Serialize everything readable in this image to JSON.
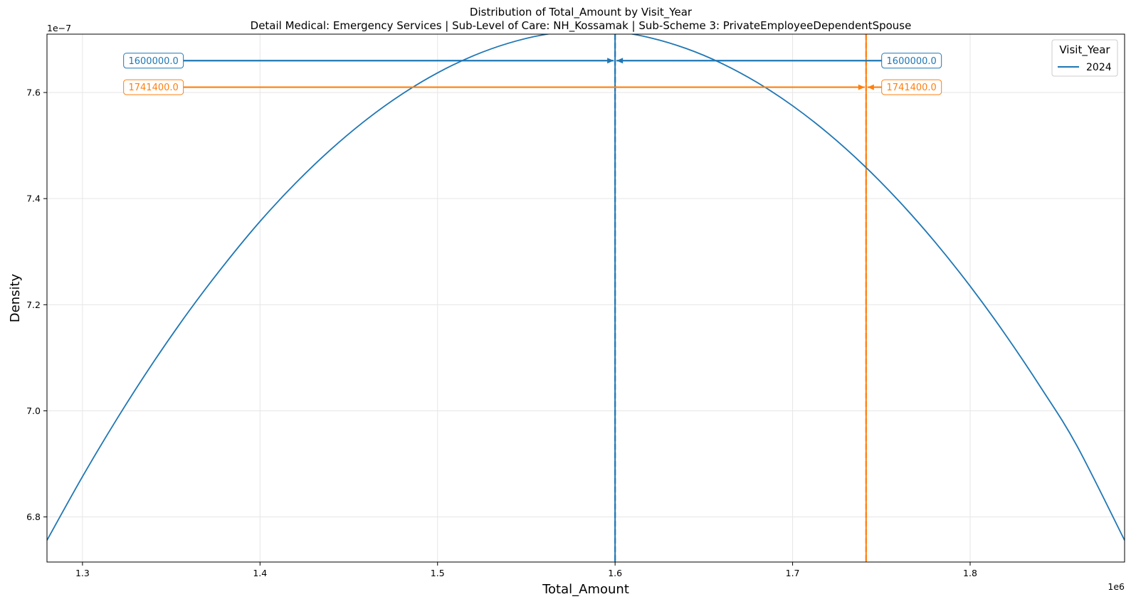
{
  "chart_data": {
    "type": "line",
    "title": "Distribution of Total_Amount by Visit_Year",
    "subtitle": "Detail Medical: Emergency Services | Sub-Level of Care: NH_Kossamak | Sub-Scheme 3: PrivateEmployeeDependentSpouse",
    "xlabel": "Total_Amount",
    "ylabel": "Density",
    "x_offset_label": "1e6",
    "y_offset_label": "1e−7",
    "xlim": [
      1.28,
      1.887
    ],
    "ylim": [
      6.715,
      7.71
    ],
    "x_ticks": [
      1.3,
      1.4,
      1.5,
      1.6,
      1.7,
      1.8
    ],
    "x_tick_labels": [
      "1.3",
      "1.4",
      "1.5",
      "1.6",
      "1.7",
      "1.8"
    ],
    "y_ticks": [
      6.8,
      7.0,
      7.2,
      7.4,
      7.6
    ],
    "y_tick_labels": [
      "6.8",
      "7.0",
      "7.2",
      "7.4",
      "7.6"
    ],
    "grid": true,
    "legend_title": "Visit_Year",
    "legend_position": "top-right",
    "series": [
      {
        "name": "2024",
        "color": "#1f77b4",
        "x": [
          1.28,
          1.3,
          1.32,
          1.34,
          1.36,
          1.38,
          1.4,
          1.42,
          1.44,
          1.46,
          1.48,
          1.5,
          1.52,
          1.54,
          1.56,
          1.584,
          1.6,
          1.62,
          1.64,
          1.66,
          1.68,
          1.7,
          1.72,
          1.74,
          1.76,
          1.78,
          1.8,
          1.82,
          1.84,
          1.86,
          1.887
        ],
        "y": [
          6.756,
          6.876,
          6.988,
          7.092,
          7.188,
          7.276,
          7.357,
          7.429,
          7.493,
          7.549,
          7.597,
          7.637,
          7.669,
          7.693,
          7.709,
          7.718,
          7.715,
          7.703,
          7.683,
          7.655,
          7.619,
          7.575,
          7.523,
          7.463,
          7.395,
          7.319,
          7.235,
          7.143,
          7.043,
          6.935,
          6.756
        ]
      }
    ],
    "vertical_lines": [
      {
        "x": 1.6,
        "color": "#1f77b4"
      },
      {
        "x": 1.7414,
        "color": "#ff7f0e"
      }
    ],
    "annotations": [
      {
        "text": "1600000.0",
        "color": "#1f77b4",
        "y": 7.66,
        "left_x": 1.34,
        "right_x": 1.767,
        "target_x": 1.6
      },
      {
        "text": "1741400.0",
        "color": "#ff7f0e",
        "y": 7.61,
        "left_x": 1.34,
        "right_x": 1.767,
        "target_x": 1.7414
      }
    ]
  }
}
